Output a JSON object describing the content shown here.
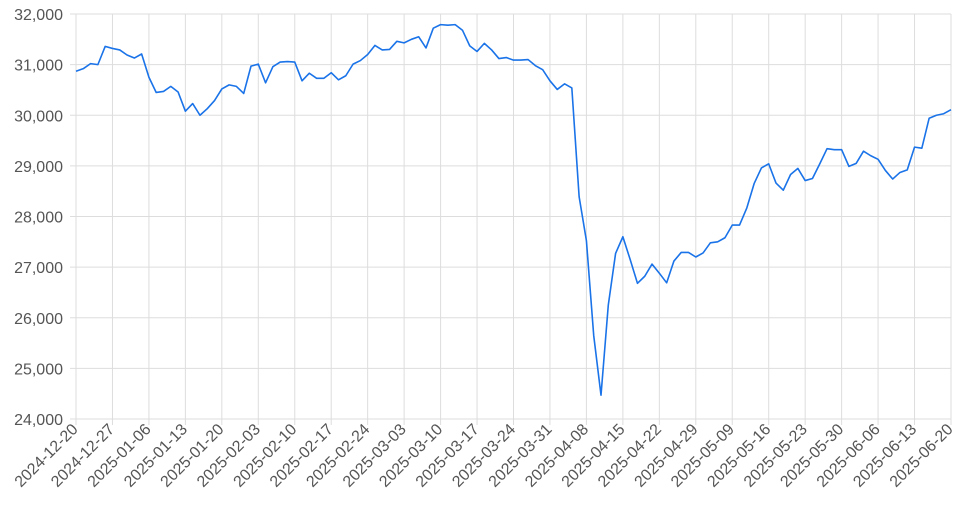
{
  "chart_data": {
    "type": "line",
    "title": "",
    "xlabel": "",
    "ylabel": "",
    "ylim": [
      24000,
      32000
    ],
    "grid": true,
    "line_color": "#1a73e8",
    "y_ticks": [
      "24,000",
      "25,000",
      "26,000",
      "27,000",
      "28,000",
      "29,000",
      "30,000",
      "31,000",
      "32,000"
    ],
    "y_tick_values": [
      24000,
      25000,
      26000,
      27000,
      28000,
      29000,
      30000,
      31000,
      32000
    ],
    "x_ticks": [
      "2024-12-20",
      "2024-12-27",
      "2025-01-06",
      "2025-01-13",
      "2025-01-20",
      "2025-02-03",
      "2025-02-10",
      "2025-02-17",
      "2025-02-24",
      "2025-03-03",
      "2025-03-10",
      "2025-03-17",
      "2025-03-24",
      "2025-03-31",
      "2025-04-08",
      "2025-04-15",
      "2025-04-22",
      "2025-04-29",
      "2025-05-09",
      "2025-05-16",
      "2025-05-23",
      "2025-05-30",
      "2025-06-06",
      "2025-06-13",
      "2025-06-20"
    ],
    "x_tick_index": [
      0,
      5,
      10,
      15,
      20,
      25,
      30,
      35,
      40,
      45,
      50,
      55,
      60,
      65,
      70,
      75,
      80,
      85,
      90,
      95,
      100,
      105,
      110,
      115,
      120
    ],
    "series": [
      {
        "values": [
          30870,
          30920,
          31020,
          31000,
          31360,
          31320,
          31290,
          31190,
          31130,
          31210,
          30750,
          30450,
          30470,
          30570,
          30460,
          30080,
          30230,
          30000,
          30130,
          30290,
          30520,
          30600,
          30570,
          30430,
          30970,
          31010,
          30640,
          30960,
          31050,
          31060,
          31050,
          30680,
          30830,
          30730,
          30730,
          30840,
          30700,
          30780,
          31010,
          31080,
          31200,
          31380,
          31290,
          31300,
          31460,
          31430,
          31500,
          31550,
          31330,
          31720,
          31790,
          31780,
          31790,
          31680,
          31370,
          31260,
          31420,
          31290,
          31120,
          31140,
          31090,
          31090,
          31100,
          30980,
          30900,
          30680,
          30510,
          30620,
          30540,
          28390,
          27520,
          25650,
          24470,
          26250,
          27270,
          27600,
          27150,
          26680,
          26820,
          27060,
          26880,
          26690,
          27120,
          27290,
          27290,
          27200,
          27280,
          27480,
          27500,
          27580,
          27830,
          27830,
          28170,
          28650,
          28960,
          29040,
          28660,
          28520,
          28830,
          28950,
          28710,
          28750,
          29040,
          29340,
          29320,
          29320,
          28990,
          29050,
          29290,
          29200,
          29130,
          28910,
          28740,
          28870,
          28920,
          29370,
          29350,
          29940,
          30000,
          30030,
          30110
        ]
      }
    ]
  }
}
